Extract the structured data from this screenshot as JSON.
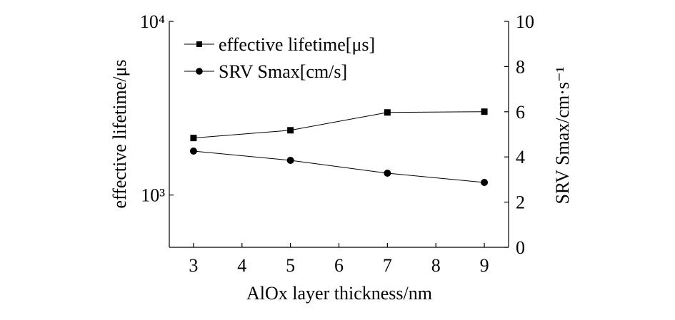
{
  "chart_data": {
    "type": "line",
    "x": [
      3,
      5,
      7,
      9
    ],
    "series": [
      {
        "name": "effective lifetime[μs]",
        "axis": "left",
        "marker": "square",
        "values": [
          2130,
          2360,
          2990,
          3020
        ]
      },
      {
        "name": "SRV Smax[cm/s]",
        "axis": "right",
        "marker": "circle",
        "values": [
          4.26,
          3.85,
          3.28,
          2.87
        ]
      }
    ],
    "xlabel": "AlOx layer thickness/nm",
    "ylabel_left": "effective lifetime/μs",
    "ylabel_right": "SRV Smax/cm·s⁻¹",
    "xlim": [
      2.5,
      9.5
    ],
    "xticks": [
      3,
      4,
      5,
      6,
      7,
      8,
      9
    ],
    "ylim_left": [
      500,
      10000
    ],
    "yscale_left": "log",
    "yticks_left": [
      {
        "value": 1000,
        "label": "10³"
      },
      {
        "value": 10000,
        "label": "10⁴"
      }
    ],
    "ylim_right": [
      0,
      10
    ],
    "yticks_right": [
      0,
      2,
      4,
      6,
      8,
      10
    ],
    "grid": false,
    "legend": "top-left",
    "line_color": "#000000"
  }
}
